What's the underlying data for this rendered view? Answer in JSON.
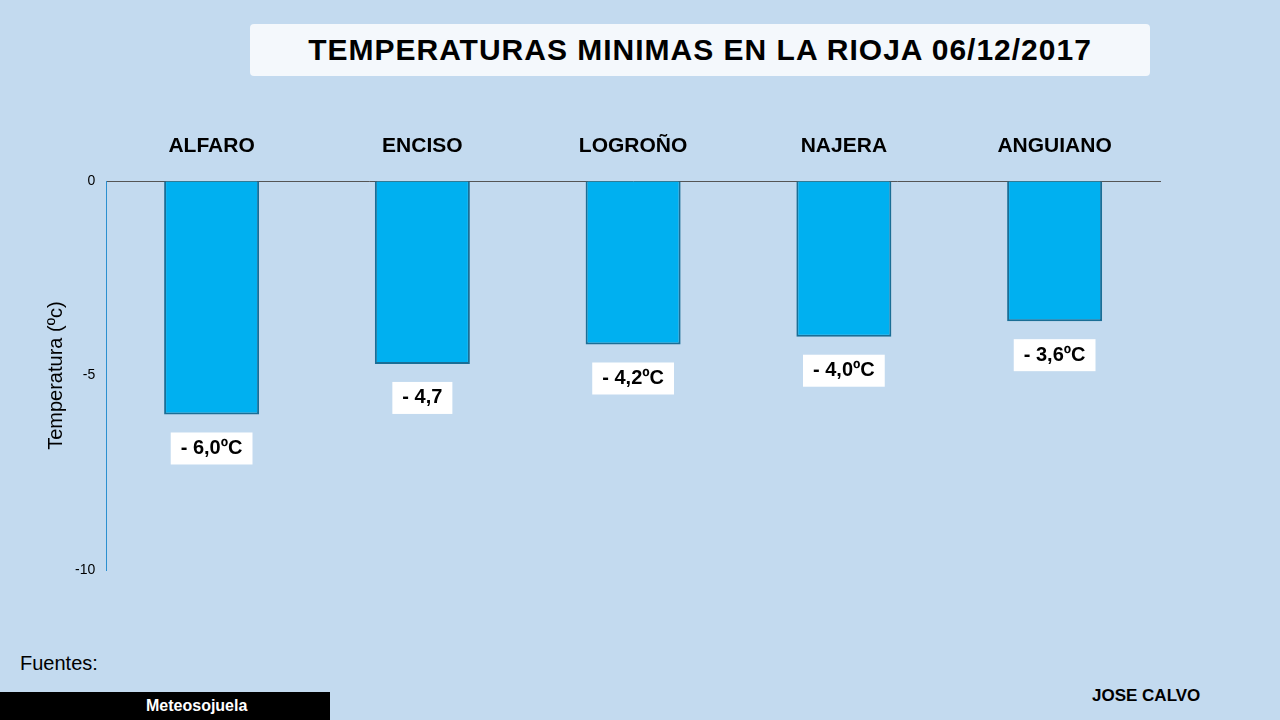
{
  "chart_data": {
    "type": "bar",
    "title": "TEMPERATURAS MINIMAS EN LA RIOJA 06/12/2017",
    "y_label": "Temperatura (ºc)",
    "categories": [
      "ALFARO",
      "ENCISO",
      "LOGROÑO",
      "NAJERA",
      "ANGUIANO"
    ],
    "values": [
      -6.0,
      -4.7,
      -4.2,
      -4.0,
      -3.6
    ],
    "value_labels": [
      "- 6,0ºC",
      "- 4,7",
      "- 4,2ºC",
      "- 4,0ºC",
      "- 3,6ºC"
    ],
    "data_labels": true,
    "color": "#00b0f0",
    "ylim": [
      -10,
      0
    ],
    "yticks": [
      -10,
      -5,
      0
    ],
    "grid": false,
    "annotations": [
      "Fuentes:",
      "Meteosojuela",
      "JOSE CALVO"
    ]
  }
}
